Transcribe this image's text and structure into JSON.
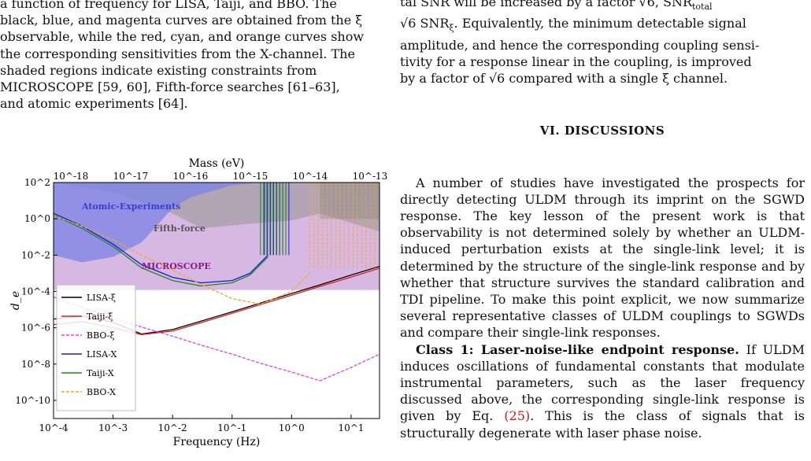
{
  "left_column": {
    "caption_top_partial": "a function of frequency for LISA, Taiji, and BBO. The",
    "caption_lines": [
      "black, blue, and magenta curves are obtained from the ξ",
      "observable, while the red, cyan, and orange curves show",
      "the corresponding sensitivities from the X-channel. The",
      "shaded regions indicate existing constraints from",
      "MICROSCOPE [59, 60], Fifth-force searches [61–63],",
      "and atomic experiments [64]."
    ]
  },
  "chart_data": {
    "type": "line",
    "xlabel": "Frequency (Hz)",
    "ylabel": "d_e",
    "top_axis_label": "Mass (eV)",
    "x_scale": "log",
    "y_scale": "log",
    "xlim": [
      0.0001,
      30
    ],
    "ylim": [
      1e-11,
      100
    ],
    "x_ticks": [
      "10^{-4}",
      "10^{-3}",
      "10^{-2}",
      "10^{-1}",
      "10^{0}",
      "10^{1}"
    ],
    "y_ticks": [
      "10^{-10}",
      "10^{-8}",
      "10^{-6}",
      "10^{-4}",
      "10^{-2}",
      "10^{0}",
      "10^{2}"
    ],
    "top_ticks": [
      "10^{-18}",
      "10^{-17}",
      "10^{-16}",
      "10^{-15}",
      "10^{-14}",
      "10^{-13}"
    ],
    "regions": [
      {
        "name": "Atomic-Experiments",
        "color": "#7b83e6"
      },
      {
        "name": "Fifth-force",
        "color": "#9a9a9a"
      },
      {
        "name": "MICROSCOPE",
        "color": "#c9a0d8"
      }
    ],
    "series": [
      {
        "name": "LISA-ξ",
        "color": "#000000",
        "style": "solid",
        "x": [
          0.0001,
          0.0003,
          0.001,
          0.003,
          0.01,
          0.03,
          0.1,
          0.3,
          1,
          3,
          10,
          30
        ],
        "y": [
          3e-06,
          4.5e-06,
          2e-06,
          4.5e-07,
          8e-07,
          2.3e-06,
          7.5e-06,
          2.3e-05,
          7.7e-05,
          0.00023,
          0.0008,
          0.0024
        ]
      },
      {
        "name": "Taiji-ξ",
        "color": "#d62020",
        "style": "solid",
        "x": [
          0.0001,
          0.0003,
          0.001,
          0.003,
          0.01,
          0.03,
          0.1,
          0.3,
          1,
          3,
          10,
          30
        ],
        "y": [
          1.5e-06,
          2.2e-06,
          1e-06,
          4.2e-07,
          6.5e-07,
          1.9e-06,
          6.2e-06,
          1.9e-05,
          6.2e-05,
          0.00019,
          0.00062,
          0.0019
        ]
      },
      {
        "name": "BBO-ξ",
        "color": "#e83ce8",
        "style": "dashed",
        "x": [
          0.0001,
          0.0003,
          0.001,
          0.003,
          0.01,
          0.03,
          0.1,
          0.3,
          1,
          3,
          10,
          30
        ],
        "y": [
          5e-05,
          1.3e-05,
          3.5e-06,
          1.1e-06,
          3.4e-07,
          1.1e-07,
          3.5e-08,
          1.1e-08,
          3.6e-09,
          1.2e-09,
          6.5e-09,
          3.5e-08
        ]
      },
      {
        "name": "LISA-X",
        "color": "#1a1ad0",
        "style": "solid",
        "x": [
          0.0001,
          0.0003,
          0.001,
          0.003,
          0.01,
          0.03,
          0.1,
          0.2,
          0.4
        ],
        "y": [
          2,
          0.4,
          0.04,
          0.003,
          0.0006,
          0.0003,
          0.0004,
          0.001,
          0.01
        ]
      },
      {
        "name": "Taiji-X",
        "color": "#1a8c1a",
        "style": "solid",
        "x": [
          0.0001,
          0.0003,
          0.001,
          0.003,
          0.01,
          0.03,
          0.1,
          0.2,
          0.4
        ],
        "y": [
          1.6,
          0.3,
          0.03,
          0.002,
          0.0004,
          0.0002,
          0.0003,
          0.0008,
          0.008
        ]
      },
      {
        "name": "BBO-X",
        "color": "#f5a623",
        "style": "dashed",
        "x": [
          0.0001,
          0.0003,
          0.001,
          0.003,
          0.01,
          0.03,
          0.1,
          0.3,
          1,
          2
        ],
        "y": [
          1.5,
          0.4,
          0.07,
          0.01,
          0.0015,
          0.00025,
          4e-05,
          2e-05,
          0.0001,
          0.001
        ]
      }
    ]
  },
  "right_column": {
    "top_partial_line_1": "tal SNR will be increased by a factor √6, SNR",
    "top_partial_sub": "total",
    "top_line_2_a": "√6 SNR",
    "top_line_2_sub": "ξ",
    "top_line_2_b": ". Equivalently, the minimum detectable signal",
    "top_line_3": "amplitude, and hence the corresponding coupling sensi-",
    "top_line_4": "tivity for a response linear in the coupling, is improved",
    "top_line_5": "by a factor of √6 compared with a single ξ channel.",
    "section_heading": "VI.   DISCUSSIONS",
    "para1": "A number of studies have investigated the prospects for directly detecting ULDM through its imprint on the SGWD response. The key lesson of the present work is that observability is not determined solely by whether an ULDM-induced perturbation exists at the single-link level; it is determined by the structure of the single-link response and by whether that structure survives the standard calibration and TDI pipeline. To make this point explicit, we now summarize several representative classes of ULDM couplings to SGWDs and compare their single-link responses.",
    "para2_bold": "Class 1: Laser-noise-like endpoint response.",
    "para2_a": " If ULDM induces oscillations of fundamental constants that modulate instrumental parameters, such as the laser frequency discussed above, the corresponding single-link response is given by Eq. ",
    "para2_eq": "(25)",
    "para2_b": ". This is the class of signals that is structurally degenerate with laser phase noise."
  }
}
